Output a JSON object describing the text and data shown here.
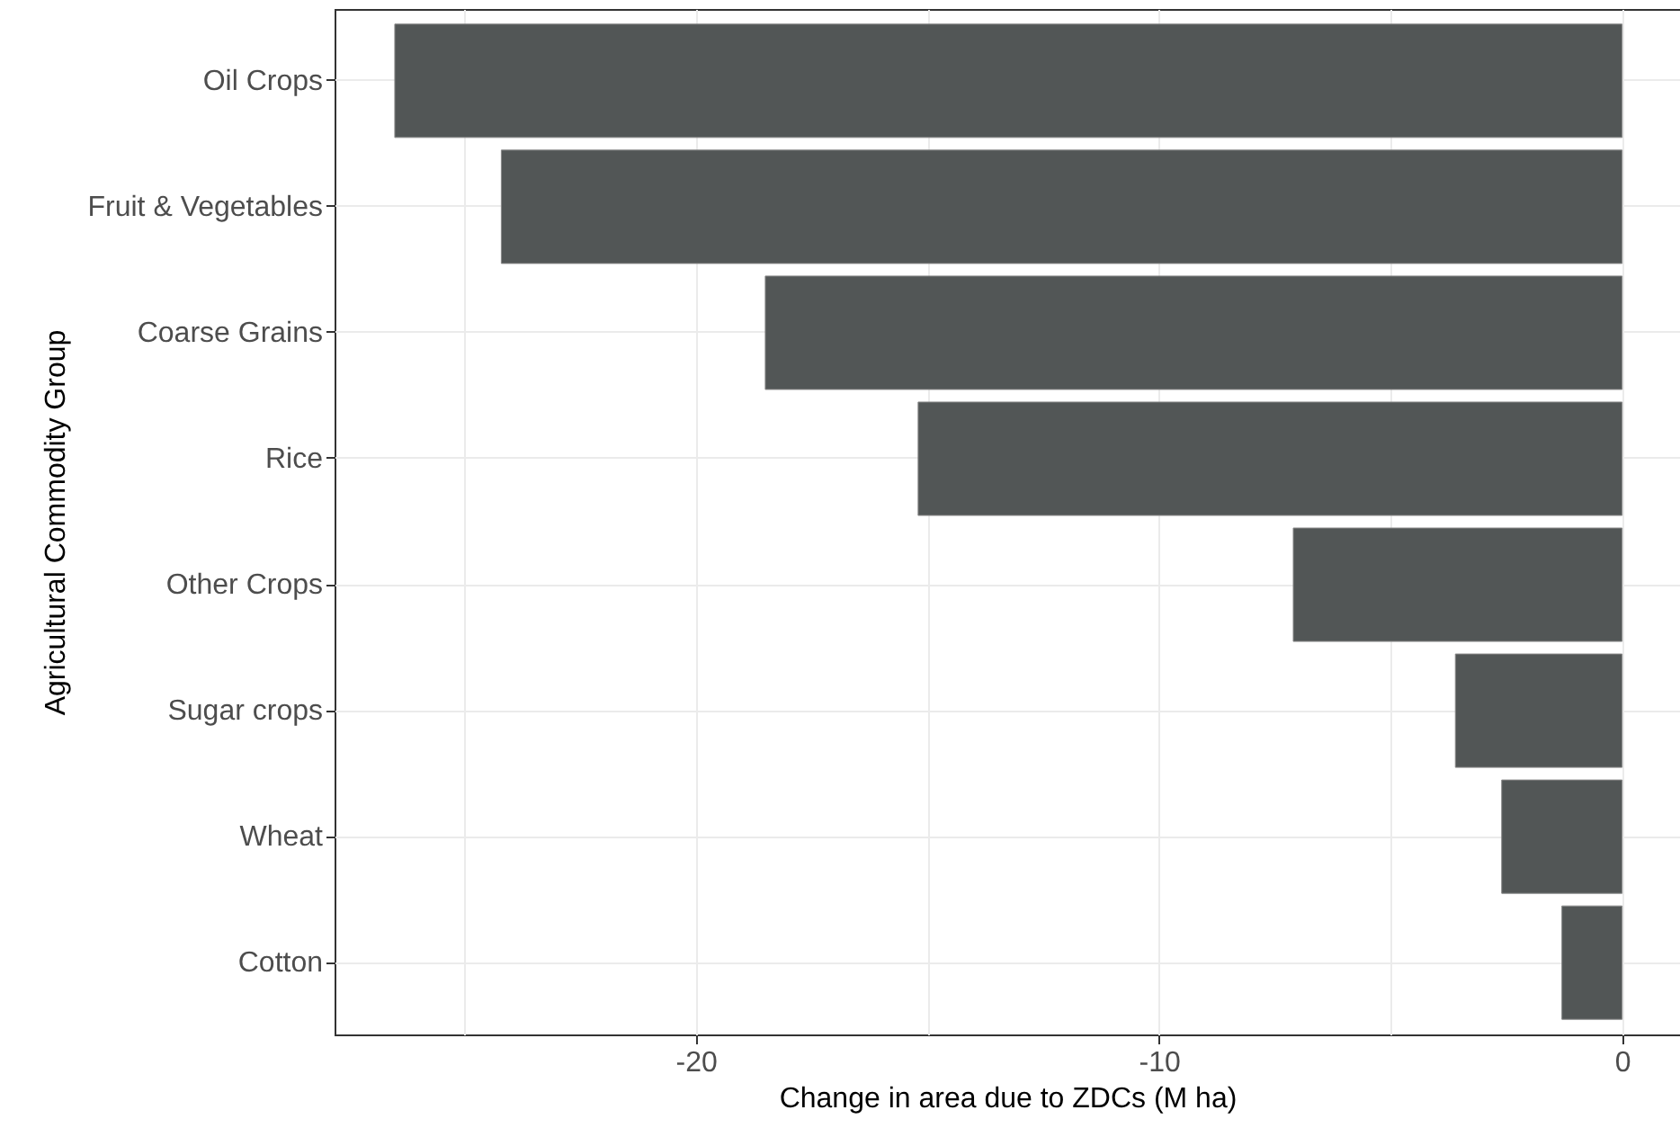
{
  "chart_data": {
    "type": "bar",
    "orientation": "horizontal",
    "xlabel": "Change in area due to ZDCs (M ha)",
    "ylabel": "Agricultural Commodity Group",
    "categories": [
      "Oil Crops",
      "Fruit & Vegetables",
      "Coarse Grains",
      "Rice",
      "Other Crops",
      "Sugar crops",
      "Wheat",
      "Cotton"
    ],
    "values": [
      -26.5,
      -24.2,
      -18.5,
      -15.2,
      -7.1,
      -3.6,
      -2.6,
      -1.3
    ],
    "color": "#525656",
    "xlim": [
      -27.8,
      1.25
    ],
    "xticks": [
      {
        "value": -25,
        "label": null
      },
      -20,
      {
        "value": -15,
        "label": null
      },
      -10,
      {
        "value": -5,
        "label": null
      },
      0
    ],
    "grid": true
  }
}
